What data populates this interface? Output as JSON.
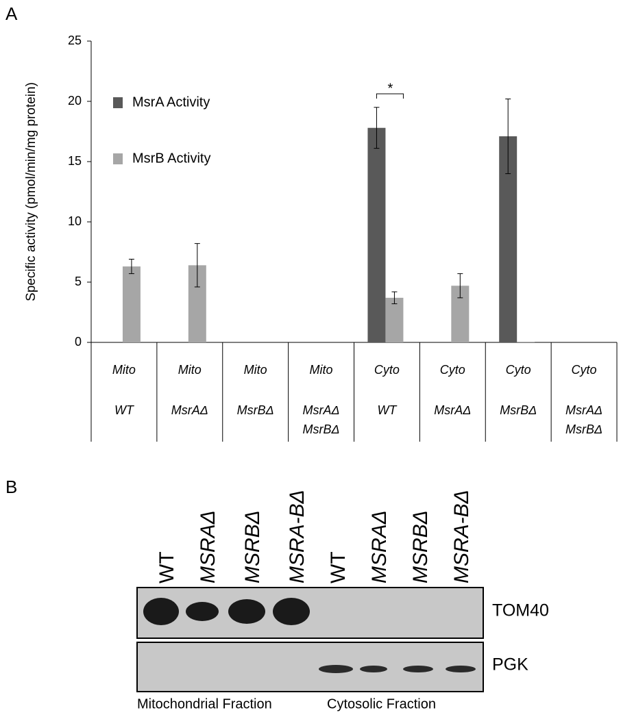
{
  "chart_data": {
    "type": "bar",
    "panel_label": "A",
    "y_label": "Specific activity (pmol/min/mg protein)",
    "categories": [
      [
        "Mito",
        "WT"
      ],
      [
        "Mito",
        "MsrAΔ"
      ],
      [
        "Mito",
        "MsrBΔ"
      ],
      [
        "Mito",
        "MsrAΔ",
        "MsrBΔ"
      ],
      [
        "Cyto",
        "WT"
      ],
      [
        "Cyto",
        "MsrAΔ"
      ],
      [
        "Cyto",
        "MsrBΔ"
      ],
      [
        "Cyto",
        "MsrAΔ",
        "MsrBΔ"
      ]
    ],
    "series": [
      {
        "name": "MsrA Activity",
        "color": "#595959",
        "values": [
          0,
          0,
          0,
          0,
          17.8,
          0,
          17.1,
          0
        ],
        "errors": [
          null,
          null,
          null,
          null,
          1.7,
          null,
          3.1,
          null
        ]
      },
      {
        "name": "MsrB Activity",
        "color": "#a6a6a6",
        "values": [
          6.3,
          6.4,
          0,
          0,
          3.7,
          4.7,
          0.05,
          0
        ],
        "errors": [
          0.6,
          1.8,
          null,
          null,
          0.5,
          1.0,
          null,
          null
        ]
      }
    ],
    "ylim": [
      0,
      25
    ],
    "yticks": [
      0,
      5,
      10,
      15,
      20,
      25
    ],
    "grid": false,
    "annotation": "*"
  },
  "blot": {
    "panel_label": "B",
    "lanes": [
      "WT",
      "MSRAΔ",
      "MSRBΔ",
      "MSRA-BΔ",
      "WT",
      "MSRAΔ",
      "MSRBΔ",
      "MSRA-BΔ"
    ],
    "rows": [
      "TOM40",
      "PGK"
    ],
    "fractions": [
      "Mitochondrial Fraction",
      "Cytosolic Fraction"
    ]
  }
}
